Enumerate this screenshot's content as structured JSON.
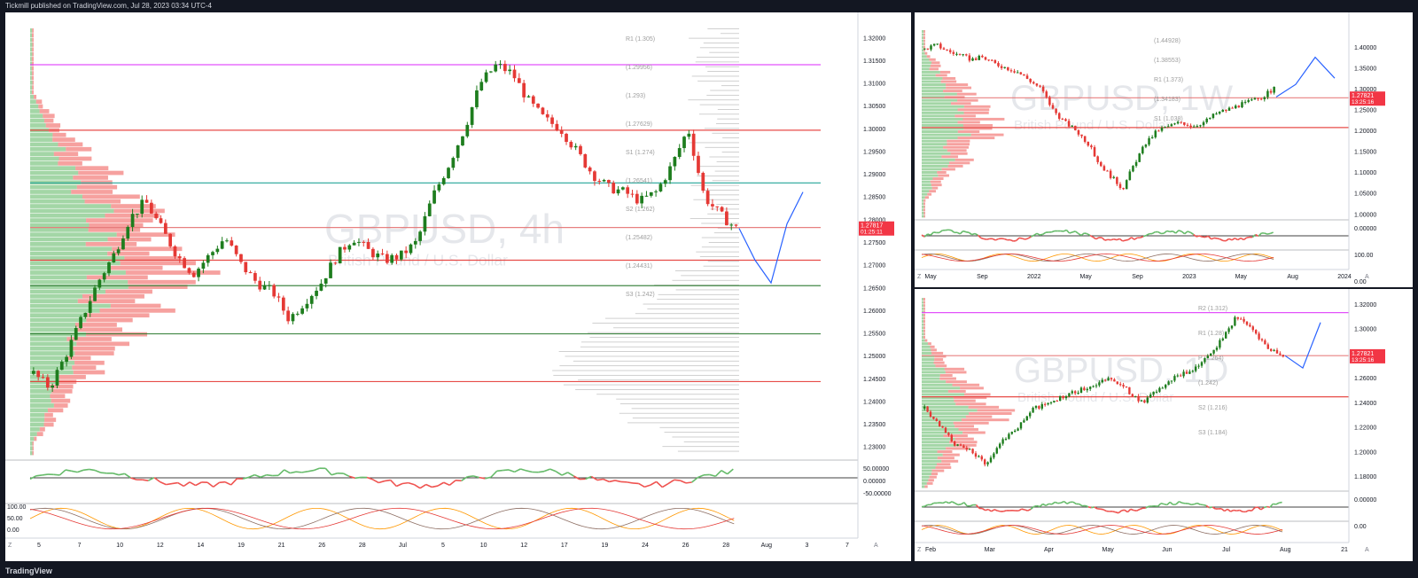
{
  "header": {
    "text": "Tickmill published on TradingView.com, Jul 28, 2023 03:34 UTC-4"
  },
  "footer": {
    "logo": "TradingView"
  },
  "colors": {
    "up": "#26a69a",
    "up_chart": "#1e7d1e",
    "down": "#e53935",
    "bg": "#ffffff",
    "grid": "#f0f3fa",
    "axis": "#787b86",
    "price_tag": "#f23645",
    "pink": "#e040fb",
    "projection": "#2962ff"
  },
  "charts": {
    "main": {
      "watermark": "GBPUSD, 4h",
      "sub_watermark": "British Pound / U.S. Dollar",
      "price_tag": {
        "price": "1.27817",
        "time": "01:25:11"
      },
      "corner_labels": {
        "left": "Z",
        "right": "A"
      },
      "pivot_labels": [
        "R1 (1.305)",
        "(1.29956)",
        "(1.293)",
        "(1.27629)",
        "S1 (1.274)",
        "(1.26541)",
        "S2 (1.262)",
        "(1.25482)",
        "(1.24431)",
        "S3 (1.242)"
      ],
      "osc_ticks": [
        "50.00000",
        "0.00000",
        "-50.00000"
      ],
      "stoch_ticks": [
        "100.00",
        "50.00",
        "0.00"
      ]
    },
    "weekly": {
      "watermark": "GBPUSD, 1W",
      "sub_watermark": "British Pound / U.S. Dollar",
      "price_tag": {
        "price": "1.27821",
        "time": "13:25:16"
      },
      "corner_labels": {
        "left": "Z",
        "right": "A"
      },
      "pivot_labels": [
        "(1.44928)",
        "(1.38553)",
        "R1 (1.373)",
        "(1.34183)",
        "S1 (1.038)"
      ],
      "osc_ticks": [
        "0.00000",
        "100.00",
        "0.00"
      ]
    },
    "daily": {
      "watermark": "GBPUSD, 1D",
      "sub_watermark": "British Pound / U.S. Dollar",
      "price_tag": {
        "price": "1.27821",
        "time": "13:25:16"
      },
      "corner_labels": {
        "left": "Z",
        "right": "A"
      },
      "pivot_labels": [
        "R2 (1.312)",
        "R1 (1.28)",
        "P (1.264)",
        "(1.242)",
        "S2 (1.216)",
        "S3 (1.184)"
      ],
      "osc_ticks": [
        "0.00000",
        "0.00"
      ]
    }
  },
  "chart_data": [
    {
      "type": "candlestick",
      "title": "GBPUSD, 4h",
      "y_ticks": [
        "1.32000",
        "1.31500",
        "1.31000",
        "1.30500",
        "1.30000",
        "1.29500",
        "1.29000",
        "1.28500",
        "1.28000",
        "1.27500",
        "1.27000",
        "1.26500",
        "1.26000",
        "1.25500",
        "1.25000",
        "1.24500",
        "1.24000",
        "1.23500",
        "1.23000"
      ],
      "x_ticks": [
        "5",
        "7",
        "10",
        "12",
        "14",
        "19",
        "21",
        "26",
        "28",
        "Jul",
        "5",
        "10",
        "12",
        "17",
        "19",
        "24",
        "26",
        "28",
        "Aug",
        "3",
        "7"
      ],
      "ylim": [
        1.228,
        1.322
      ],
      "path": [
        1.246,
        1.243,
        1.25,
        1.258,
        1.266,
        1.272,
        1.28,
        1.284,
        1.278,
        1.272,
        1.268,
        1.272,
        1.276,
        1.27,
        1.266,
        1.264,
        1.258,
        1.262,
        1.266,
        1.272,
        1.276,
        1.273,
        1.271,
        1.272,
        1.275,
        1.285,
        1.292,
        1.3,
        1.31,
        1.314,
        1.312,
        1.306,
        1.302,
        1.3,
        1.295,
        1.29,
        1.287,
        1.286,
        1.284,
        1.286,
        1.292,
        1.3,
        1.285,
        1.281,
        1.278
      ],
      "projection": [
        1.278,
        1.271,
        1.266,
        1.279,
        1.286
      ],
      "levels": [
        {
          "price": 1.314,
          "color": "#e040fb"
        },
        {
          "price": 1.2996,
          "color": "#e53935"
        },
        {
          "price": 1.288,
          "color": "#26a69a"
        },
        {
          "price": 1.2782,
          "color": "#e57373"
        },
        {
          "price": 1.271,
          "color": "#e53935"
        },
        {
          "price": 1.2654,
          "color": "#2e7d32"
        },
        {
          "price": 1.2548,
          "color": "#2e7d32"
        },
        {
          "price": 1.2443,
          "color": "#e53935"
        }
      ]
    },
    {
      "type": "candlestick",
      "title": "GBPUSD, 1W",
      "y_ticks": [
        "1.40000",
        "1.35000",
        "1.30000",
        "1.25000",
        "1.20000",
        "1.15000",
        "1.10000",
        "1.05000",
        "1.00000"
      ],
      "x_ticks": [
        "May",
        "Sep",
        "2022",
        "May",
        "Sep",
        "2023",
        "May",
        "Aug",
        "2024"
      ],
      "ylim": [
        0.99,
        1.44
      ],
      "path": [
        1.395,
        1.405,
        1.39,
        1.38,
        1.37,
        1.375,
        1.36,
        1.35,
        1.34,
        1.32,
        1.3,
        1.25,
        1.22,
        1.2,
        1.17,
        1.12,
        1.09,
        1.06,
        1.12,
        1.17,
        1.2,
        1.21,
        1.22,
        1.21,
        1.22,
        1.24,
        1.25,
        1.26,
        1.27,
        1.28,
        1.3
      ],
      "projection": [
        1.28,
        1.31,
        1.375,
        1.325
      ],
      "levels": [
        {
          "price": 1.2067,
          "color": "#e53935"
        },
        {
          "price": 1.278,
          "color": "#e57373"
        }
      ]
    },
    {
      "type": "candlestick",
      "title": "GBPUSD, 1D",
      "y_ticks": [
        "1.32000",
        "1.30000",
        "1.28000",
        "1.26000",
        "1.24000",
        "1.22000",
        "1.20000",
        "1.18000"
      ],
      "x_ticks": [
        "Feb",
        "Mar",
        "Apr",
        "May",
        "Jun",
        "Jul",
        "Aug",
        "21"
      ],
      "ylim": [
        1.17,
        1.325
      ],
      "path": [
        1.235,
        1.22,
        1.205,
        1.2,
        1.19,
        1.21,
        1.22,
        1.235,
        1.24,
        1.245,
        1.25,
        1.255,
        1.26,
        1.25,
        1.24,
        1.25,
        1.26,
        1.265,
        1.275,
        1.29,
        1.31,
        1.3,
        1.285,
        1.278
      ],
      "projection": [
        1.278,
        1.268,
        1.305
      ],
      "levels": [
        {
          "price": 1.2445,
          "color": "#e53935"
        },
        {
          "price": 1.313,
          "color": "#e040fb"
        },
        {
          "price": 1.278,
          "color": "#e57373"
        }
      ]
    }
  ]
}
